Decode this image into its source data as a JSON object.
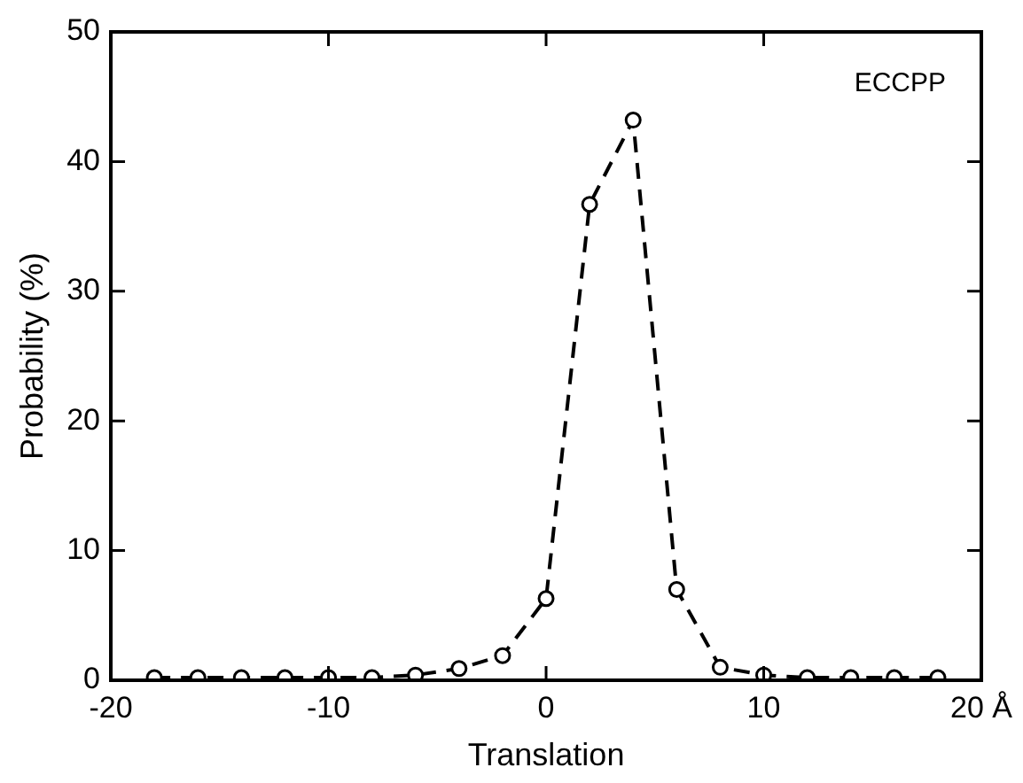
{
  "chart_data": {
    "type": "line",
    "xlabel": "Translation",
    "ylabel": "Probability (%)",
    "annotations": [
      "ECCPP"
    ],
    "x": [
      -18,
      -16,
      -14,
      -12,
      -10,
      -8,
      -6,
      -4,
      -2,
      0,
      2,
      4,
      6,
      8,
      10,
      12,
      14,
      16,
      18
    ],
    "series": [
      {
        "color": "#000000",
        "values": [
          0.2,
          0.2,
          0.2,
          0.2,
          0.2,
          0.2,
          0.4,
          0.9,
          1.9,
          6.3,
          36.7,
          43.2,
          7.0,
          1.0,
          0.4,
          0.2,
          0.2,
          0.2,
          0.2
        ]
      }
    ],
    "xlim": [
      -20,
      20
    ],
    "xticks": [
      -20,
      -10,
      0,
      10,
      {
        "value": 20,
        "label": "20 Å"
      }
    ],
    "ylim": [
      0,
      50
    ],
    "yticks": [
      0,
      10,
      20,
      30,
      40,
      50
    ],
    "grid": false,
    "legend": false,
    "marker": "circle",
    "line_style": "dashed"
  }
}
